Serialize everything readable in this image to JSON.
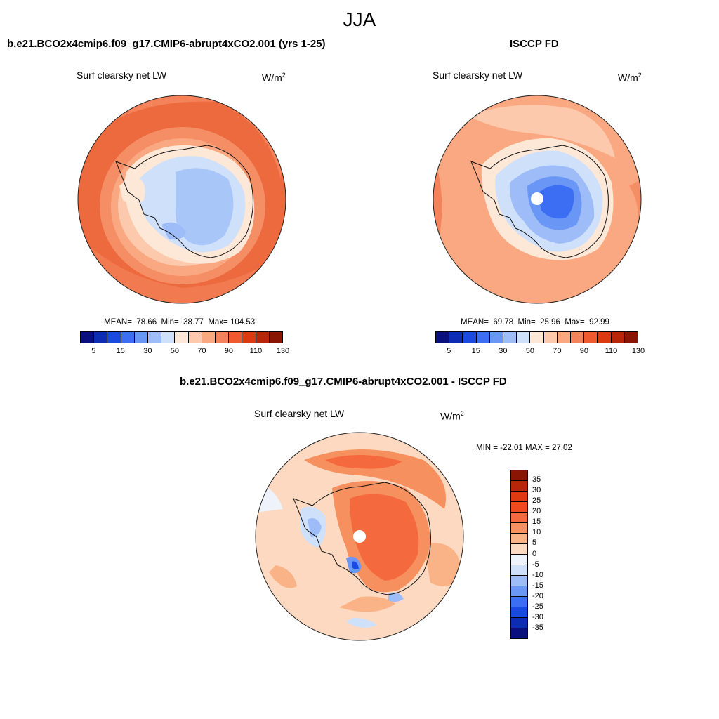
{
  "figure": {
    "title": "JJA",
    "units": "W/m",
    "units_sup": "2",
    "variable": "Surf clearsky net LW"
  },
  "panels": {
    "model": {
      "title": "b.e21.BCO2x4cmip6.f09_g17.CMIP6-abrupt4xCO2.001 (yrs 1-25)",
      "mean_label": "MEAN=",
      "mean": "78.66",
      "min_label": "Min=",
      "min": "38.77",
      "max_label": "Max=",
      "max": "104.53"
    },
    "obs": {
      "title": "ISCCP FD",
      "mean_label": "MEAN=",
      "mean": "69.78",
      "min_label": "Min=",
      "min": "25.96",
      "max_label": "Max=",
      "max": "92.99"
    },
    "diff": {
      "title": "b.e21.BCO2x4cmip6.f09_g17.CMIP6-abrupt4xCO2.001 - ISCCP FD",
      "minmax": "MIN = -22.01 MAX =  27.02"
    }
  },
  "colorbar_horizontal": {
    "tick_labels": [
      "5",
      "15",
      "30",
      "50",
      "70",
      "90",
      "110",
      "130"
    ],
    "colors": [
      "#0a0f80",
      "#0d2bb3",
      "#1a4ae0",
      "#3b6ef2",
      "#6a96f5",
      "#9dbcf8",
      "#cfe0fb",
      "#fde8d8",
      "#fcc9ac",
      "#f9a882",
      "#f4825a",
      "#ef5a2e",
      "#dd3a12",
      "#b8260a",
      "#8a1505"
    ]
  },
  "colorbar_vertical": {
    "tick_labels": [
      "35",
      "30",
      "25",
      "20",
      "15",
      "10",
      "5",
      "0",
      "-5",
      "-10",
      "-15",
      "-20",
      "-25",
      "-30",
      "-35"
    ],
    "colors": [
      "#8a1505",
      "#b8260a",
      "#dd3a12",
      "#ef4a1e",
      "#f46a3e",
      "#f6905e",
      "#f9b387",
      "#fcd9c0",
      "#eef3fb",
      "#cfe0fb",
      "#9dbcf8",
      "#6a96f5",
      "#3b6ef2",
      "#1a4ae0",
      "#0d2bb3",
      "#0a0f80"
    ]
  }
}
